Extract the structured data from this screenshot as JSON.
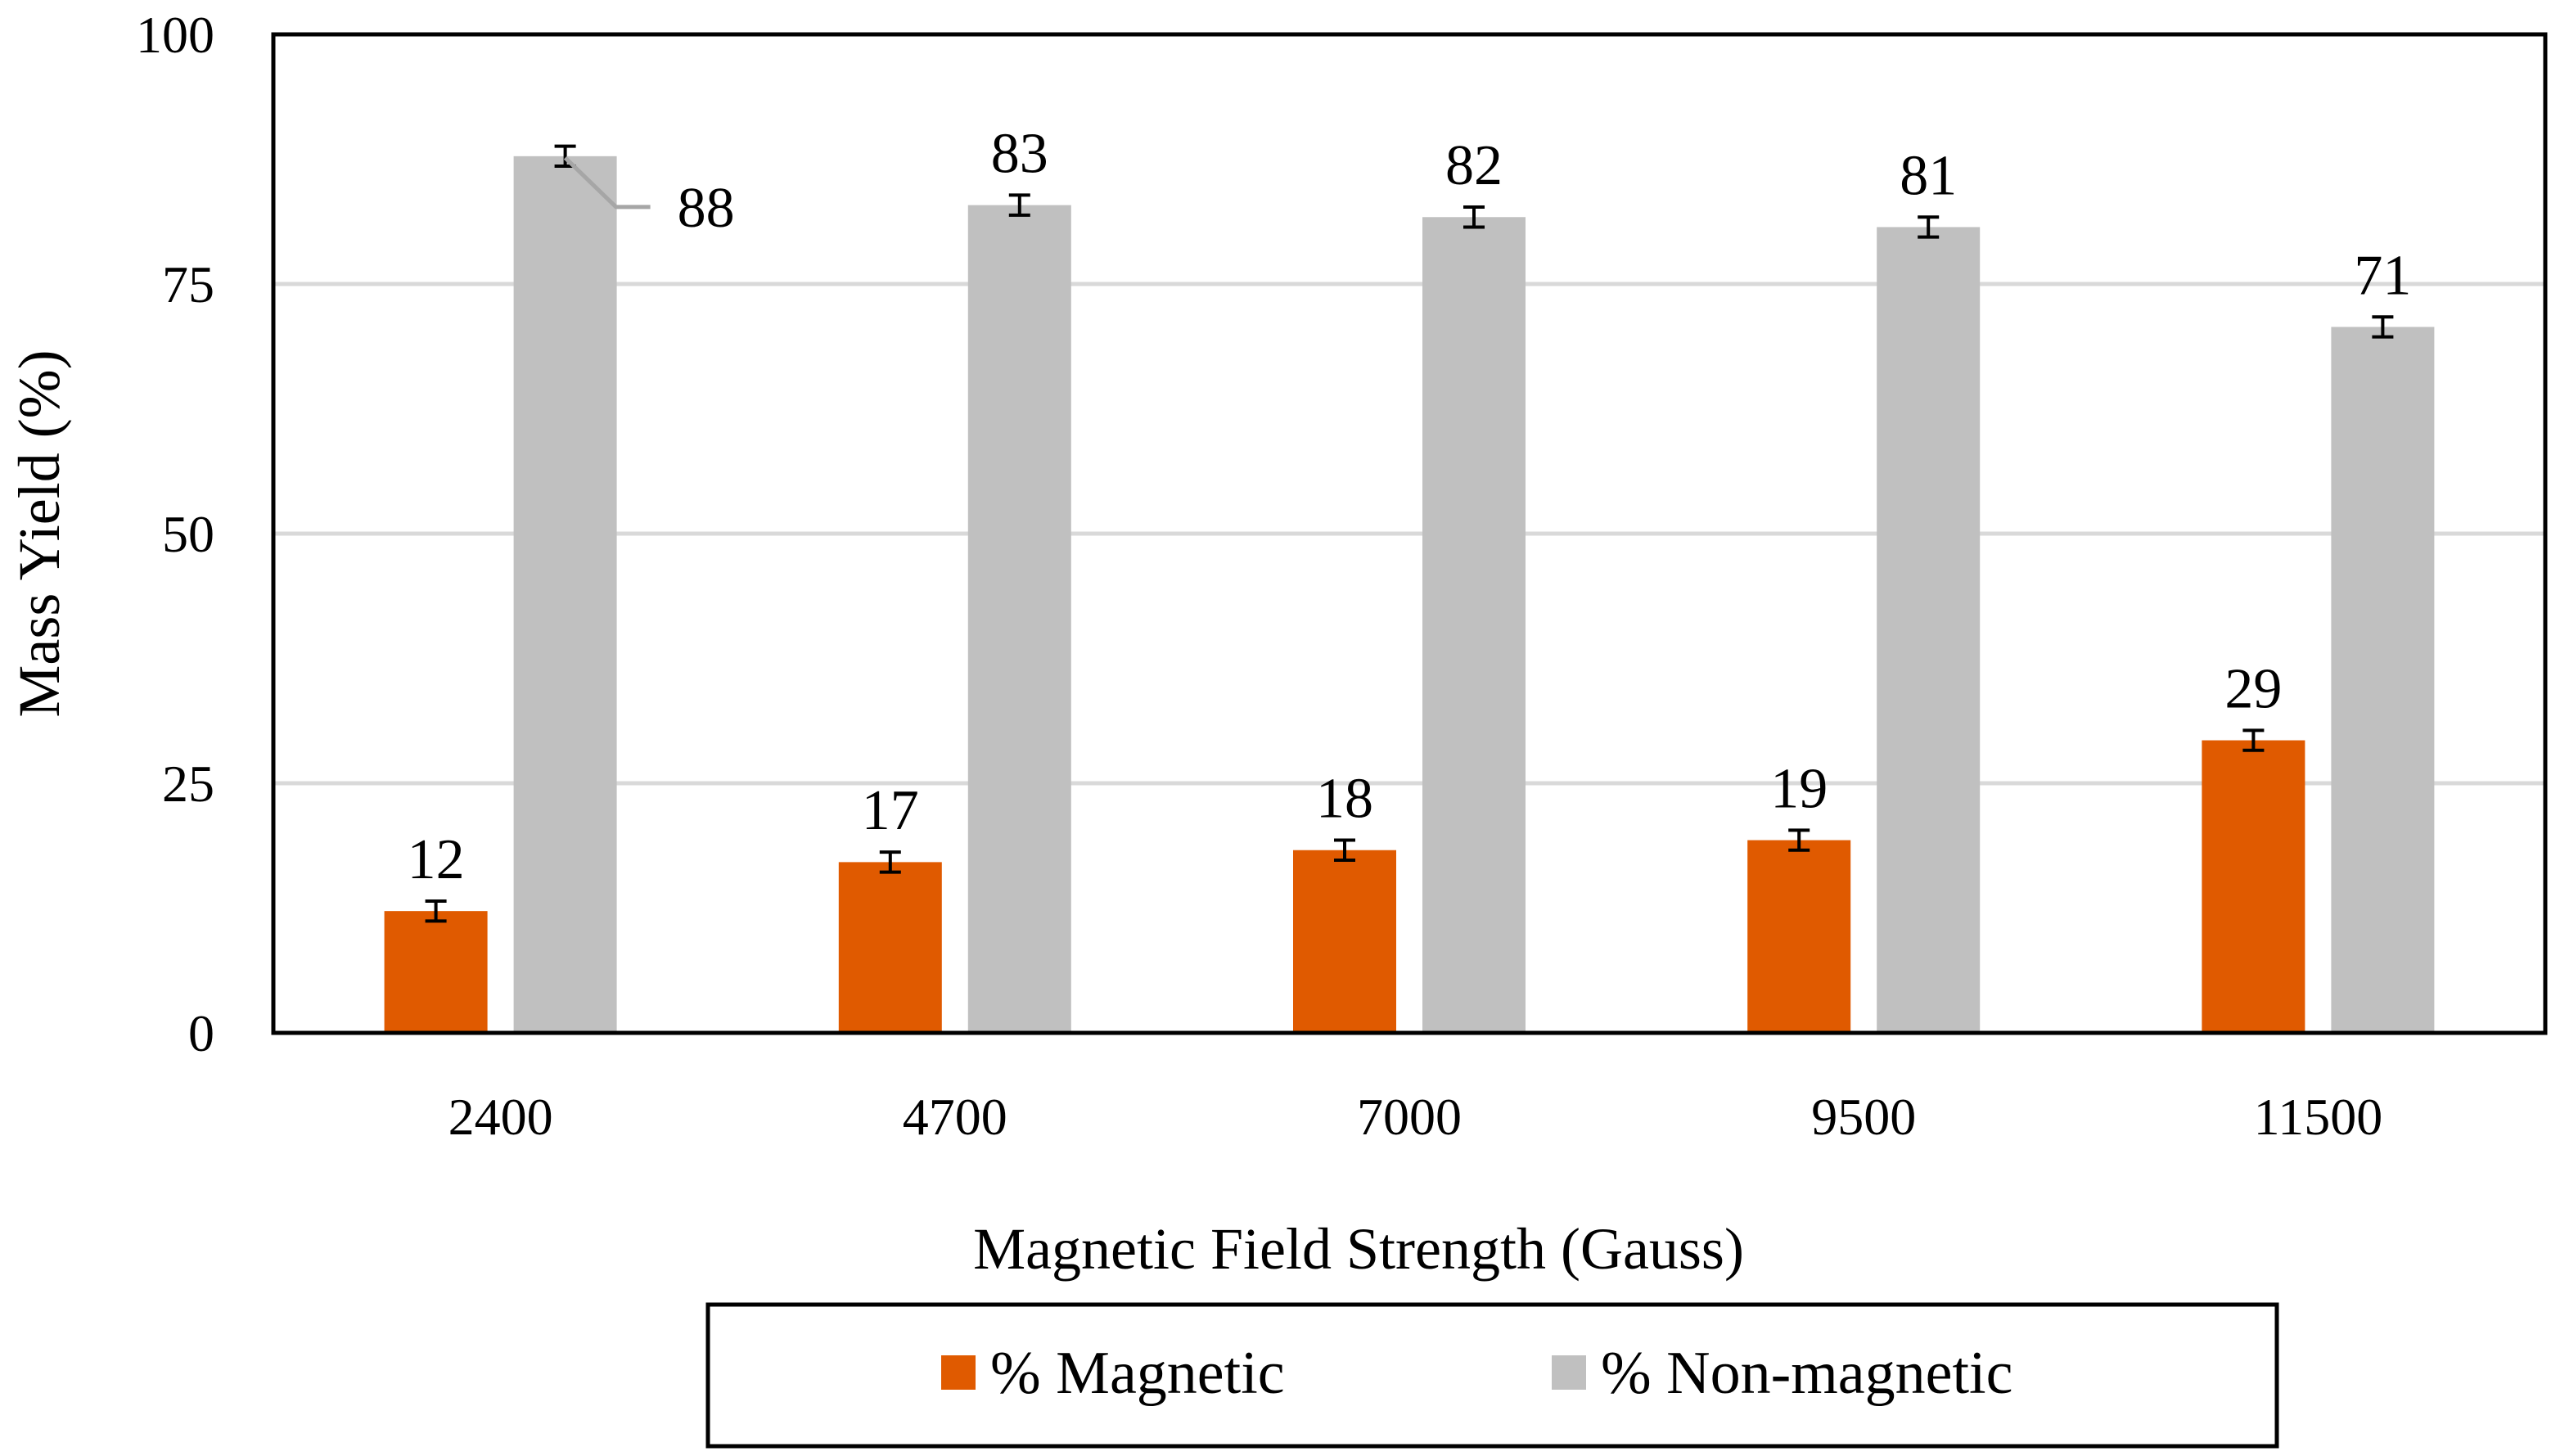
{
  "chart_data": {
    "type": "bar",
    "title": "",
    "xlabel": "Magnetic Field Strength (Gauss)",
    "ylabel": "Mass Yield (%)",
    "categories": [
      "2400",
      "4700",
      "7000",
      "9500",
      "11500"
    ],
    "series": [
      {
        "name": "% Magnetic",
        "color": "#e05a00",
        "values": [
          12.2,
          17.1,
          18.3,
          19.3,
          29.3
        ],
        "labels": [
          "12",
          "17",
          "18",
          "19",
          "29"
        ],
        "error": [
          1.0,
          1.0,
          1.0,
          1.0,
          1.0
        ]
      },
      {
        "name": "% Non-magnetic",
        "color": "#c0c0c0",
        "values": [
          87.8,
          82.9,
          81.7,
          80.7,
          70.7
        ],
        "labels": [
          "88",
          "83",
          "82",
          "81",
          "71"
        ],
        "error": [
          1.0,
          1.0,
          1.0,
          1.0,
          1.0
        ]
      }
    ],
    "ylim": [
      0,
      100
    ],
    "yticks": [
      "0",
      "25",
      "50",
      "75",
      "100"
    ],
    "grid": true,
    "legend": "bottom"
  }
}
